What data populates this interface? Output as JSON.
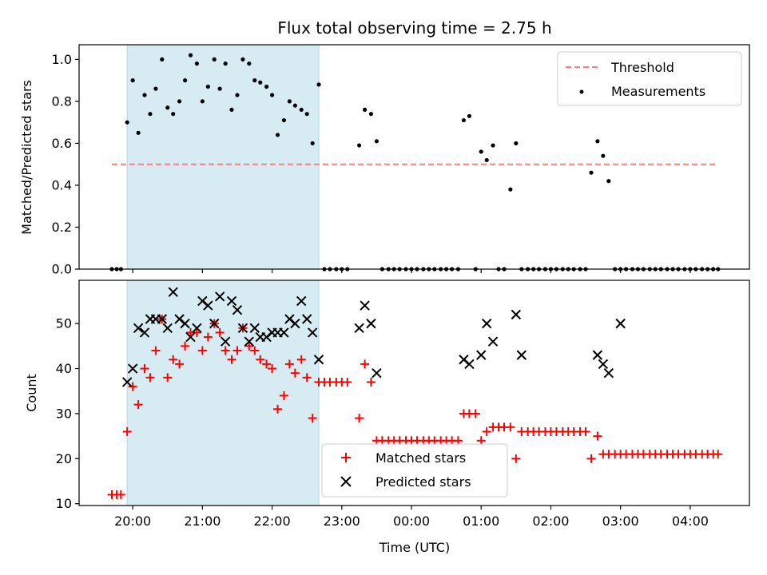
{
  "figure": {
    "title": "Flux total observing time = 2.75 h",
    "xlabel": "Time (UTC)"
  },
  "chart_data": [
    {
      "type": "scatter",
      "panel": "top",
      "ylabel": "Matched/Predicted stars",
      "xlim": [
        19.23,
        28.85
      ],
      "ylim": [
        0,
        1.07
      ],
      "yticks": [
        0.0,
        0.2,
        0.4,
        0.6,
        0.8,
        1.0
      ],
      "ytick_labels": [
        "0.0",
        "0.2",
        "0.4",
        "0.6",
        "0.8",
        "1.0"
      ],
      "legend": {
        "position": "top-right"
      },
      "shaded_span": {
        "x": [
          19.92,
          22.67
        ],
        "color": "#add8e6"
      },
      "threshold": {
        "name": "Threshold",
        "y": 0.5,
        "x": [
          19.7,
          28.4
        ],
        "color": "#ff7f7f"
      },
      "series": [
        {
          "name": "Measurements",
          "color": "#000000",
          "x": [
            19.7,
            19.77,
            19.83,
            19.92,
            20.0,
            20.08,
            20.17,
            20.25,
            20.33,
            20.42,
            20.5,
            20.58,
            20.67,
            20.75,
            20.83,
            20.92,
            21.0,
            21.08,
            21.17,
            21.25,
            21.33,
            21.42,
            21.5,
            21.58,
            21.67,
            21.75,
            21.83,
            21.92,
            22.0,
            22.08,
            22.17,
            22.25,
            22.33,
            22.42,
            22.5,
            22.58,
            22.67,
            22.75,
            22.83,
            22.92,
            23.0,
            23.08,
            23.25,
            23.33,
            23.42,
            23.5,
            23.58,
            23.67,
            23.75,
            23.83,
            23.92,
            24.0,
            24.08,
            24.17,
            24.25,
            24.33,
            24.42,
            24.5,
            24.58,
            24.67,
            24.75,
            24.83,
            24.92,
            25.0,
            25.08,
            25.17,
            25.25,
            25.33,
            25.42,
            25.5,
            25.58,
            25.67,
            25.75,
            25.83,
            25.92,
            26.0,
            26.08,
            26.17,
            26.25,
            26.33,
            26.42,
            26.5,
            26.58,
            26.67,
            26.75,
            26.83,
            26.92,
            27.0,
            27.08,
            27.17,
            27.25,
            27.33,
            27.42,
            27.5,
            27.58,
            27.67,
            27.75,
            27.83,
            27.92,
            28.0,
            28.08,
            28.17,
            28.25,
            28.33,
            28.4
          ],
          "y": [
            0,
            0,
            0,
            0.7,
            0.9,
            0.65,
            0.83,
            0.74,
            0.86,
            1.0,
            0.77,
            0.74,
            0.8,
            0.9,
            1.02,
            0.98,
            0.8,
            0.87,
            1.0,
            0.86,
            0.98,
            0.76,
            0.83,
            1.0,
            0.98,
            0.9,
            0.89,
            0.87,
            0.83,
            0.64,
            0.71,
            0.8,
            0.78,
            0.76,
            0.74,
            0.6,
            0.88,
            0,
            0,
            0,
            0,
            0,
            0.59,
            0.76,
            0.74,
            0.61,
            0,
            0,
            0,
            0,
            0,
            0,
            0,
            0,
            0,
            0,
            0,
            0,
            0,
            0,
            0.71,
            0.73,
            0,
            0.56,
            0.52,
            0.59,
            0,
            0,
            0.38,
            0.6,
            0,
            0,
            0,
            0,
            0,
            0,
            0,
            0,
            0,
            0,
            0,
            0,
            0.46,
            0.61,
            0.54,
            0.42,
            0,
            0,
            0,
            0,
            0,
            0,
            0,
            0,
            0,
            0,
            0,
            0,
            0,
            0,
            0,
            0,
            0,
            0,
            0
          ]
        }
      ]
    },
    {
      "type": "scatter",
      "panel": "bottom",
      "ylabel": "Count",
      "xlim": [
        19.23,
        28.85
      ],
      "ylim": [
        9.6,
        59.6
      ],
      "yticks": [
        10,
        20,
        30,
        40,
        50
      ],
      "ytick_labels": [
        "10",
        "20",
        "30",
        "40",
        "50"
      ],
      "xticks": [
        20,
        21,
        22,
        23,
        24,
        25,
        26,
        27,
        28
      ],
      "xtick_labels": [
        "20:00",
        "21:00",
        "22:00",
        "23:00",
        "00:00",
        "01:00",
        "02:00",
        "03:00",
        "04:00"
      ],
      "legend": {
        "position": "lower-center"
      },
      "shaded_span": {
        "x": [
          19.92,
          22.67
        ],
        "color": "#add8e6"
      },
      "series": [
        {
          "name": "Matched stars",
          "marker": "plus",
          "color": "#ff0000",
          "x": [
            19.7,
            19.77,
            19.83,
            19.92,
            20.0,
            20.08,
            20.17,
            20.25,
            20.33,
            20.42,
            20.5,
            20.58,
            20.67,
            20.75,
            20.83,
            20.92,
            21.0,
            21.08,
            21.17,
            21.25,
            21.33,
            21.42,
            21.5,
            21.58,
            21.67,
            21.75,
            21.83,
            21.92,
            22.0,
            22.08,
            22.17,
            22.25,
            22.33,
            22.42,
            22.5,
            22.58,
            22.67,
            22.75,
            22.83,
            22.92,
            23.0,
            23.08,
            23.25,
            23.33,
            23.42,
            23.5,
            23.58,
            23.67,
            23.75,
            23.83,
            23.92,
            24.0,
            24.08,
            24.17,
            24.25,
            24.33,
            24.42,
            24.5,
            24.58,
            24.67,
            24.75,
            24.83,
            24.92,
            25.0,
            25.08,
            25.17,
            25.25,
            25.33,
            25.42,
            25.5,
            25.58,
            25.67,
            25.75,
            25.83,
            25.92,
            26.0,
            26.08,
            26.17,
            26.25,
            26.33,
            26.42,
            26.5,
            26.58,
            26.67,
            26.75,
            26.83,
            26.92,
            27.0,
            27.08,
            27.17,
            27.25,
            27.33,
            27.42,
            27.5,
            27.58,
            27.67,
            27.75,
            27.83,
            27.92,
            28.0,
            28.08,
            28.17,
            28.25,
            28.33,
            28.4
          ],
          "y": [
            12,
            12,
            12,
            26,
            36,
            32,
            40,
            38,
            44,
            51,
            38,
            42,
            41,
            45,
            48,
            48,
            44,
            47,
            50,
            48,
            44,
            42,
            44,
            49,
            45,
            44,
            42,
            41,
            40,
            31,
            34,
            41,
            39,
            42,
            38,
            29,
            37,
            37,
            37,
            37,
            37,
            37,
            29,
            41,
            37,
            24,
            24,
            24,
            24,
            24,
            24,
            24,
            24,
            24,
            24,
            24,
            24,
            24,
            24,
            24,
            30,
            30,
            30,
            24,
            26,
            27,
            27,
            27,
            27,
            20,
            26,
            26,
            26,
            26,
            26,
            26,
            26,
            26,
            26,
            26,
            26,
            26,
            20,
            25,
            21,
            21,
            21,
            21,
            21,
            21,
            21,
            21,
            21,
            21,
            21,
            21,
            21,
            21,
            21,
            21,
            21,
            21,
            21,
            21,
            21
          ]
        },
        {
          "name": "Predicted stars",
          "marker": "x",
          "color": "#000000",
          "x": [
            19.92,
            20.0,
            20.08,
            20.17,
            20.25,
            20.33,
            20.42,
            20.5,
            20.58,
            20.67,
            20.75,
            20.83,
            20.92,
            21.0,
            21.08,
            21.17,
            21.25,
            21.33,
            21.42,
            21.5,
            21.58,
            21.67,
            21.75,
            21.83,
            21.92,
            22.0,
            22.08,
            22.17,
            22.25,
            22.33,
            22.42,
            22.5,
            22.58,
            22.67,
            23.25,
            23.33,
            23.42,
            23.5,
            24.75,
            24.83,
            25.0,
            25.08,
            25.17,
            25.5,
            25.58,
            26.67,
            26.75,
            26.83,
            27.0
          ],
          "y": [
            37,
            40,
            49,
            48,
            51,
            51,
            51,
            49,
            57,
            51,
            50,
            47,
            49,
            55,
            54,
            50,
            56,
            46,
            55,
            53,
            49,
            46,
            49,
            47,
            47,
            48,
            48,
            48,
            51,
            50,
            55,
            51,
            48,
            42,
            49,
            54,
            50,
            39,
            42,
            41,
            43,
            50,
            46,
            52,
            43,
            43,
            41,
            39,
            50
          ]
        }
      ]
    }
  ]
}
